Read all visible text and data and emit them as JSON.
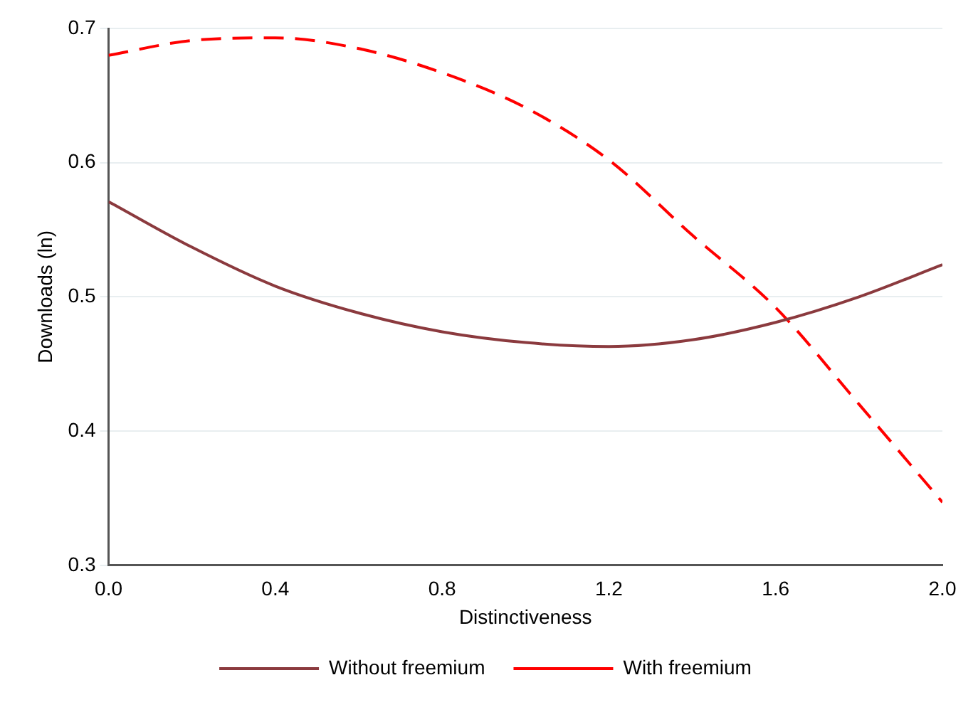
{
  "chart_data": {
    "type": "line",
    "xlabel": "Distinctiveness",
    "ylabel": "Downloads (ln)",
    "x": [
      0,
      0.2,
      0.4,
      0.6,
      0.8,
      1.0,
      1.2,
      1.4,
      1.6,
      1.8,
      2.0
    ],
    "series": [
      {
        "name": "Without freemium",
        "color": "#8b3a3e",
        "line_style": "solid",
        "values": [
          0.571,
          0.537,
          0.508,
          0.488,
          0.474,
          0.466,
          0.463,
          0.468,
          0.481,
          0.5,
          0.524
        ]
      },
      {
        "name": "With freemium",
        "color": "#ff0000",
        "line_style": "dashed",
        "values": [
          0.68,
          0.691,
          0.693,
          0.685,
          0.667,
          0.641,
          0.602,
          0.546,
          0.492,
          0.42,
          0.347
        ]
      }
    ],
    "xlim": [
      0,
      2
    ],
    "xticks": [
      {
        "value": 0,
        "label": "0.0"
      },
      0.4,
      0.8,
      1.2,
      1.6,
      {
        "value": 2,
        "label": "2.0"
      }
    ],
    "ylim": [
      0.3,
      0.7
    ],
    "yticks": [
      0.3,
      0.4,
      0.5,
      0.6,
      0.7
    ],
    "grid": "y",
    "legend": "bottom",
    "marker": "none"
  }
}
